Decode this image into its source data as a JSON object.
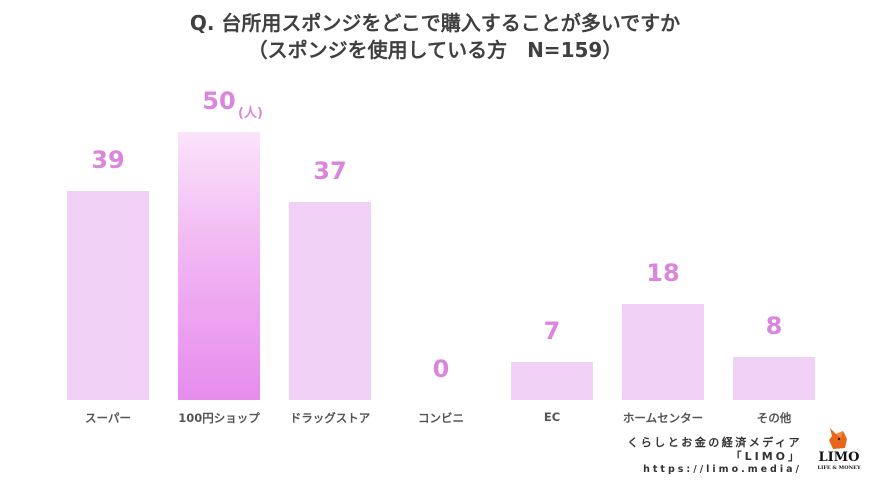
{
  "title": {
    "line1": "Q. 台所用スポンジをどこで購入することが多いですか",
    "line2": "（スポンジを使用している方　N=159）"
  },
  "chart_data": {
    "type": "bar",
    "title": "Q. 台所用スポンジをどこで購入することが多いですか（スポンジを使用している方　N=159）",
    "xlabel": "",
    "ylabel": "",
    "unit": "(人)",
    "categories": [
      "スーパー",
      "100円ショップ",
      "ドラッグストア",
      "コンビニ",
      "EC",
      "ホームセンター",
      "その他"
    ],
    "values": [
      39,
      50,
      37,
      0,
      7,
      18,
      8
    ],
    "value_labels": [
      "39",
      "50",
      "37",
      "0",
      "7",
      "18",
      "8"
    ],
    "highlight_index": 1,
    "ylim": [
      0,
      50
    ],
    "grid": false,
    "legend": null,
    "colors": {
      "bar": "#f0d0f4",
      "highlight_top": "#fbe3fb",
      "highlight_bottom": "#e68ced",
      "value_label": "#db86dd",
      "category_label": "#555555",
      "title": "#404040"
    }
  },
  "footer": {
    "tagline": "くらしとお金の経済メディア",
    "brand": "「LIMO」",
    "url": "https://limo.media/",
    "logo_word": "LIMO",
    "logo_sub": "LIFE & MONEY"
  }
}
